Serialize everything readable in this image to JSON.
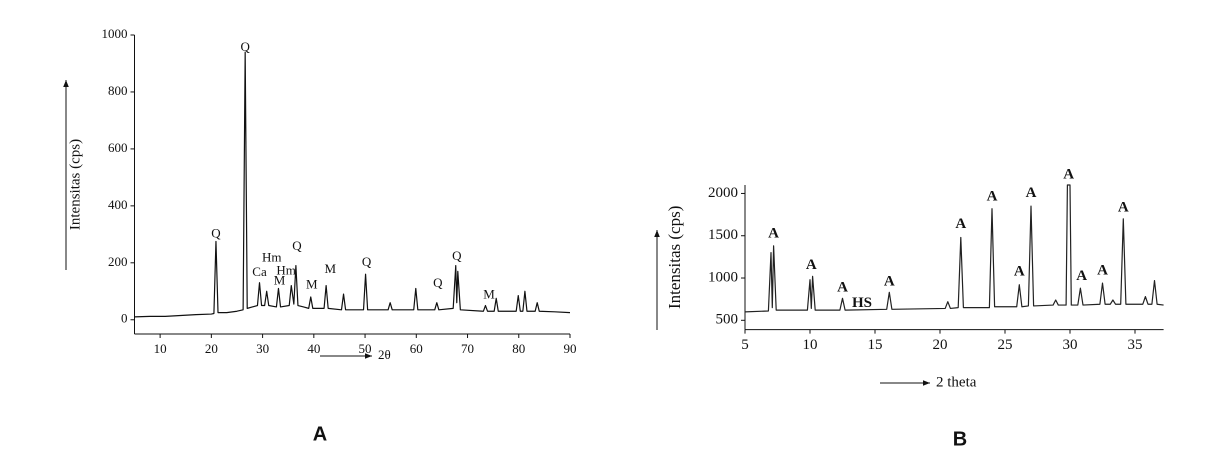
{
  "chart_data": [
    {
      "type": "line",
      "caption": "A",
      "ylabel": "Intensitas (cps)",
      "xlabel": "2θ",
      "xlim": [
        5,
        90
      ],
      "ylim": [
        -50,
        1000
      ],
      "xticks": [
        10,
        20,
        30,
        40,
        50,
        60,
        70,
        80,
        90
      ],
      "yticks": [
        0,
        200,
        400,
        600,
        800,
        1000
      ],
      "x": [
        5,
        8,
        11,
        14,
        17,
        20,
        20.5,
        20.9,
        21.3,
        23,
        25,
        26.2,
        26.6,
        27,
        28,
        29,
        29.4,
        29.8,
        30.4,
        30.8,
        31.2,
        32.7,
        33.1,
        33.5,
        35.2,
        35.6,
        36.1,
        36.5,
        36.9,
        38,
        39,
        39.4,
        39.8,
        42,
        42.4,
        42.8,
        45.4,
        45.8,
        46.2,
        48,
        49.7,
        50.1,
        50.5,
        54.5,
        54.9,
        55.3,
        59.5,
        59.9,
        60.3,
        63.6,
        64,
        64.4,
        67.2,
        67.7,
        67.9,
        68.1,
        68.6,
        73.1,
        73.5,
        73.9,
        75.2,
        75.6,
        76,
        79.5,
        79.9,
        80.3,
        80.8,
        81.2,
        81.6,
        83.2,
        83.6,
        84,
        87,
        90
      ],
      "series": [
        {
          "color": "#111111",
          "values": [
            10,
            12,
            12,
            15,
            18,
            20,
            22,
            275,
            25,
            25,
            30,
            35,
            940,
            40,
            45,
            50,
            130,
            50,
            50,
            100,
            50,
            45,
            110,
            45,
            50,
            120,
            55,
            190,
            50,
            45,
            40,
            80,
            40,
            40,
            120,
            40,
            35,
            90,
            35,
            35,
            35,
            160,
            35,
            35,
            60,
            35,
            35,
            110,
            35,
            35,
            60,
            35,
            40,
            190,
            60,
            170,
            35,
            30,
            50,
            30,
            30,
            75,
            30,
            30,
            85,
            30,
            30,
            100,
            30,
            30,
            60,
            30,
            28,
            25
          ]
        }
      ],
      "annotations": [
        {
          "text": "Q",
          "x": 20.9,
          "y": 300
        },
        {
          "text": "Q",
          "x": 26.6,
          "y": 955
        },
        {
          "text": "Hm",
          "x": 31.8,
          "y": 215,
          "color": "#999999"
        },
        {
          "text": "Ca",
          "x": 29.4,
          "y": 165
        },
        {
          "text": "Hm",
          "x": 34.6,
          "y": 170,
          "color": "#999999"
        },
        {
          "text": "M",
          "x": 33.3,
          "y": 135
        },
        {
          "text": "Q",
          "x": 36.7,
          "y": 255
        },
        {
          "text": "M",
          "x": 39.6,
          "y": 120
        },
        {
          "text": "M",
          "x": 43.2,
          "y": 175
        },
        {
          "text": "Q",
          "x": 50.3,
          "y": 200
        },
        {
          "text": "Q",
          "x": 64.2,
          "y": 125
        },
        {
          "text": "Q",
          "x": 67.9,
          "y": 220
        },
        {
          "text": "M",
          "x": 74.2,
          "y": 85
        }
      ]
    },
    {
      "type": "line",
      "caption": "B",
      "ylabel": "Intensitas (cps)",
      "xlabel": "2 theta",
      "xlim": [
        5,
        37.2
      ],
      "ylim": [
        390,
        2100
      ],
      "xticks": [
        5,
        10,
        15,
        20,
        25,
        30,
        35
      ],
      "yticks": [
        500,
        1000,
        1500,
        2000
      ],
      "x": [
        5,
        6.8,
        7.0,
        7.1,
        7.2,
        7.4,
        9.8,
        10.0,
        10.1,
        10.2,
        10.4,
        12.3,
        12.5,
        12.7,
        15.9,
        16.1,
        16.3,
        20.4,
        20.6,
        20.8,
        21.4,
        21.6,
        21.8,
        23.8,
        24.0,
        24.2,
        25.9,
        26.1,
        26.3,
        26.8,
        27.0,
        27.2,
        28.7,
        28.9,
        29.1,
        29.7,
        29.8,
        30.0,
        30.1,
        30.6,
        30.8,
        31.0,
        32.3,
        32.5,
        32.7,
        33.1,
        33.3,
        33.5,
        33.9,
        34.1,
        34.3,
        35.6,
        35.8,
        36.0,
        36.3,
        36.5,
        36.7,
        37.2
      ],
      "series": [
        {
          "color": "#222222",
          "values": [
            600,
            610,
            1300,
            650,
            1380,
            620,
            620,
            980,
            640,
            1020,
            620,
            620,
            760,
            620,
            630,
            830,
            630,
            640,
            720,
            640,
            650,
            1480,
            650,
            650,
            1820,
            660,
            660,
            920,
            660,
            670,
            1850,
            670,
            680,
            740,
            680,
            680,
            2100,
            2100,
            680,
            680,
            880,
            680,
            690,
            940,
            690,
            690,
            740,
            690,
            690,
            1700,
            690,
            690,
            780,
            690,
            690,
            970,
            690,
            680
          ]
        }
      ],
      "annotations": [
        {
          "text": "A",
          "x": 7.2,
          "y": 1520
        },
        {
          "text": "A",
          "x": 10.1,
          "y": 1150
        },
        {
          "text": "A",
          "x": 12.5,
          "y": 880
        },
        {
          "text": "HS",
          "x": 14.0,
          "y": 700
        },
        {
          "text": "A",
          "x": 16.1,
          "y": 950
        },
        {
          "text": "A",
          "x": 21.6,
          "y": 1630
        },
        {
          "text": "A",
          "x": 24.0,
          "y": 1960
        },
        {
          "text": "A",
          "x": 26.1,
          "y": 1070
        },
        {
          "text": "A",
          "x": 27.0,
          "y": 2000
        },
        {
          "text": "A",
          "x": 29.9,
          "y": 2220
        },
        {
          "text": "A",
          "x": 30.9,
          "y": 1020
        },
        {
          "text": "A",
          "x": 32.5,
          "y": 1080
        },
        {
          "text": "A",
          "x": 34.1,
          "y": 1830
        }
      ]
    }
  ]
}
